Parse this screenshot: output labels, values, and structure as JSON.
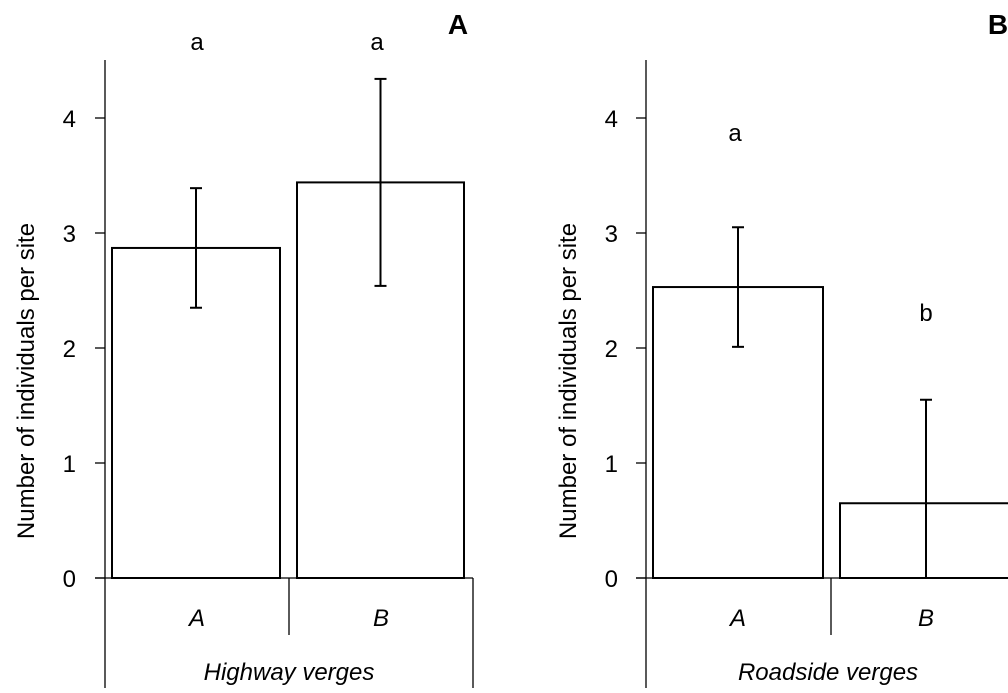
{
  "chart_data": [
    {
      "type": "bar",
      "panel_label": "A",
      "group_label": "Highway verges",
      "categories": [
        "A",
        "B"
      ],
      "values": [
        2.87,
        3.44
      ],
      "error": [
        0.52,
        0.9
      ],
      "letters": [
        "a",
        "a"
      ],
      "ylabel": "Number of individuals per site",
      "ylim": [
        0,
        4.5
      ],
      "yticks": [
        "0",
        "1",
        "2",
        "3",
        "4"
      ],
      "grid": false
    },
    {
      "type": "bar",
      "panel_label": "B",
      "group_label": "Roadside verges",
      "categories": [
        "A",
        "B"
      ],
      "values": [
        2.53,
        0.65
      ],
      "error": [
        0.52,
        0.9
      ],
      "letters": [
        "a",
        "b"
      ],
      "ylabel": "Number of individuals per site",
      "ylim": [
        0,
        4.5
      ],
      "yticks": [
        "0",
        "1",
        "2",
        "3",
        "4"
      ],
      "grid": false
    }
  ]
}
